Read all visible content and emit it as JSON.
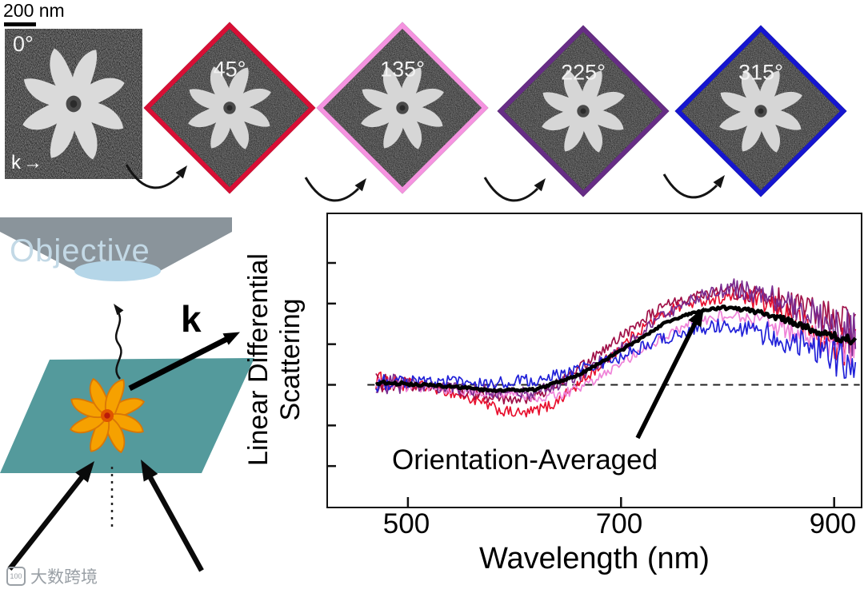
{
  "scale_bar": {
    "label": "200 nm"
  },
  "sem_series": {
    "k_arrow_label": "k",
    "k_arrow_glyph": "→",
    "tiles": [
      {
        "angle_label": "0°",
        "border_color": "#1a1a1a",
        "rotation": 0
      },
      {
        "angle_label": "45°",
        "border_color": "#d80f35",
        "rotation": 45
      },
      {
        "angle_label": "135°",
        "border_color": "#f593e0",
        "rotation": 135
      },
      {
        "angle_label": "225°",
        "border_color": "#662d85",
        "rotation": 225
      },
      {
        "angle_label": "315°",
        "border_color": "#1616cf",
        "rotation": 315
      }
    ]
  },
  "schematic": {
    "objective_label": "Objective",
    "k_label": "k"
  },
  "watermark": {
    "logo_text": "100",
    "text": "大数跨境"
  },
  "chart_data": {
    "type": "line",
    "title": "",
    "xlabel": "Wavelength (nm)",
    "ylabel": "Linear Differential Scattering",
    "ylabel_lines": [
      "Linear Differential",
      "Scattering"
    ],
    "annotation": "Orientation-Averaged",
    "xlim": [
      425,
      925
    ],
    "ylim": [
      -1.5,
      2.1
    ],
    "xstart": 470,
    "xend": 921,
    "xticks": [
      500,
      700,
      900
    ],
    "yticks": [
      -1,
      -0.5,
      0,
      0.5,
      1,
      1.5
    ],
    "zero_dashed_line": true,
    "legend_position": "none",
    "grid": false,
    "series": [
      {
        "name": "0deg",
        "color": "#e8102e",
        "width": 1.7,
        "noise": 0.07,
        "points": [
          [
            470,
            0.05
          ],
          [
            500,
            0.0
          ],
          [
            530,
            -0.05
          ],
          [
            560,
            -0.18
          ],
          [
            590,
            -0.33
          ],
          [
            610,
            -0.36
          ],
          [
            635,
            -0.25
          ],
          [
            660,
            0.0
          ],
          [
            690,
            0.35
          ],
          [
            720,
            0.7
          ],
          [
            750,
            0.95
          ],
          [
            780,
            1.05
          ],
          [
            810,
            1.1
          ],
          [
            835,
            1.0
          ],
          [
            860,
            0.85
          ],
          [
            885,
            0.6
          ],
          [
            905,
            0.5
          ],
          [
            920,
            0.45
          ]
        ]
      },
      {
        "name": "45deg",
        "color": "#a01048",
        "width": 1.7,
        "noise": 0.07,
        "points": [
          [
            470,
            0.02
          ],
          [
            500,
            0.0
          ],
          [
            540,
            -0.05
          ],
          [
            575,
            -0.15
          ],
          [
            605,
            -0.2
          ],
          [
            635,
            -0.05
          ],
          [
            665,
            0.25
          ],
          [
            695,
            0.55
          ],
          [
            725,
            0.85
          ],
          [
            755,
            1.05
          ],
          [
            785,
            1.15
          ],
          [
            815,
            1.15
          ],
          [
            845,
            1.05
          ],
          [
            870,
            0.95
          ],
          [
            895,
            0.8
          ],
          [
            920,
            0.7
          ]
        ]
      },
      {
        "name": "135deg",
        "color": "#ef82d8",
        "width": 1.7,
        "noise": 0.06,
        "points": [
          [
            470,
            0.0
          ],
          [
            500,
            -0.02
          ],
          [
            540,
            -0.06
          ],
          [
            580,
            -0.1
          ],
          [
            615,
            -0.16
          ],
          [
            645,
            -0.12
          ],
          [
            675,
            0.05
          ],
          [
            705,
            0.3
          ],
          [
            735,
            0.55
          ],
          [
            765,
            0.75
          ],
          [
            795,
            0.85
          ],
          [
            825,
            0.8
          ],
          [
            855,
            0.7
          ],
          [
            885,
            0.55
          ],
          [
            920,
            0.45
          ]
        ]
      },
      {
        "name": "225deg",
        "color": "#7a2b8f",
        "width": 1.7,
        "noise": 0.08,
        "points": [
          [
            470,
            0.03
          ],
          [
            500,
            0.0
          ],
          [
            540,
            -0.03
          ],
          [
            580,
            -0.08
          ],
          [
            620,
            -0.1
          ],
          [
            660,
            0.1
          ],
          [
            700,
            0.45
          ],
          [
            740,
            0.85
          ],
          [
            775,
            1.1
          ],
          [
            805,
            1.2
          ],
          [
            835,
            1.1
          ],
          [
            865,
            0.95
          ],
          [
            895,
            0.75
          ],
          [
            920,
            0.6
          ]
        ]
      },
      {
        "name": "315deg",
        "color": "#2020d8",
        "width": 1.7,
        "noise": 0.08,
        "points": [
          [
            470,
            0.06
          ],
          [
            500,
            0.06
          ],
          [
            540,
            0.04
          ],
          [
            580,
            0.02
          ],
          [
            620,
            0.06
          ],
          [
            660,
            0.18
          ],
          [
            700,
            0.35
          ],
          [
            735,
            0.55
          ],
          [
            765,
            0.68
          ],
          [
            795,
            0.73
          ],
          [
            825,
            0.68
          ],
          [
            855,
            0.55
          ],
          [
            885,
            0.42
          ],
          [
            920,
            0.3
          ]
        ]
      },
      {
        "name": "Orientation-Averaged",
        "color": "#000000",
        "width": 4.5,
        "noise": 0.015,
        "points": [
          [
            470,
            0.03
          ],
          [
            500,
            0.01
          ],
          [
            540,
            -0.02
          ],
          [
            580,
            -0.07
          ],
          [
            620,
            -0.06
          ],
          [
            660,
            0.12
          ],
          [
            700,
            0.42
          ],
          [
            740,
            0.75
          ],
          [
            770,
            0.9
          ],
          [
            795,
            0.95
          ],
          [
            820,
            0.92
          ],
          [
            850,
            0.82
          ],
          [
            880,
            0.68
          ],
          [
            905,
            0.58
          ],
          [
            920,
            0.55
          ]
        ]
      }
    ]
  }
}
